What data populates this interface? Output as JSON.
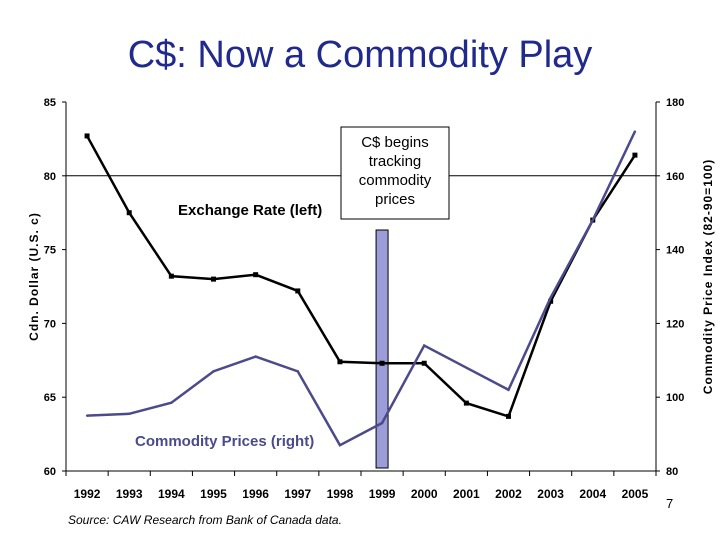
{
  "slide": {
    "title": "C$: Now a Commodity Play",
    "page_number": "7"
  },
  "chart_data": {
    "type": "line",
    "x": [
      "1992",
      "1993",
      "1994",
      "1995",
      "1996",
      "1997",
      "1998",
      "1999",
      "2000",
      "2001",
      "2002",
      "2003",
      "2004",
      "2005"
    ],
    "series": [
      {
        "name": "Exchange Rate (left)",
        "axis": "left",
        "color": "#000000",
        "values": [
          82.7,
          77.5,
          73.2,
          73.0,
          73.3,
          72.2,
          67.4,
          67.3,
          67.3,
          64.6,
          63.7,
          71.5,
          77.0,
          81.4
        ]
      },
      {
        "name": "Commodity Prices (right)",
        "axis": "right",
        "color": "#4b4a8c",
        "values": [
          95,
          95.5,
          98.5,
          107,
          111,
          107,
          87,
          93,
          114,
          108,
          102,
          127,
          148,
          172
        ]
      }
    ],
    "left_axis": {
      "label": "Cdn. Dollar (U.S. c)",
      "min": 60,
      "max": 85,
      "ticks": [
        "60",
        "65",
        "70",
        "75",
        "80",
        "85"
      ]
    },
    "right_axis": {
      "label": "Commodity Price Index (82-90=100)",
      "min": 80,
      "max": 180,
      "ticks": [
        "80",
        "100",
        "120",
        "140",
        "160",
        "180"
      ]
    },
    "gridline_at_left": 80,
    "highlight_year": "1999",
    "annotation": {
      "lines": [
        "C$ begins",
        "tracking",
        "commodity",
        "prices"
      ]
    },
    "labels": {
      "exchange": "Exchange Rate (left)",
      "commodity": "Commodity Prices (right)"
    },
    "source": "Source: CAW Research from Bank of Canada data.",
    "colors": {
      "exchange": "#000000",
      "commodity": "#4b4a8c",
      "bar": "#9c9cd8",
      "title": "#1f2a8c"
    }
  }
}
